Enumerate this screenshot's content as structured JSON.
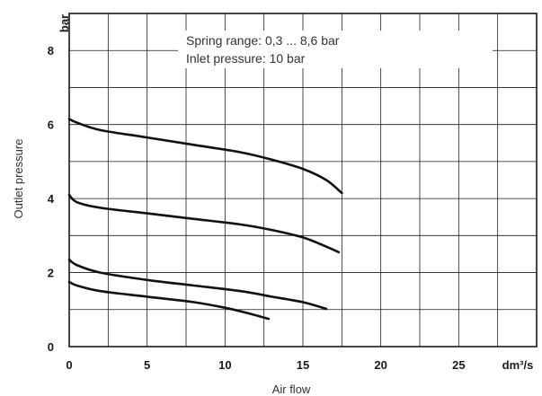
{
  "chart_data": {
    "type": "line",
    "xlabel": "Air flow",
    "ylabel": "Outlet pressure",
    "x_unit": "dm³/s",
    "y_unit": "bar",
    "xlim": [
      0,
      30
    ],
    "ylim": [
      0,
      9
    ],
    "x_ticks": [
      0,
      5,
      10,
      15,
      20,
      25
    ],
    "y_ticks": [
      0,
      2,
      4,
      6,
      8
    ],
    "x_gridlines": [
      0,
      2.5,
      5,
      7.5,
      10,
      12.5,
      15,
      17.5,
      20,
      22.5,
      25,
      27.5,
      30
    ],
    "y_gridlines": [
      0,
      1,
      2,
      3,
      4,
      5,
      6,
      7,
      8,
      9
    ],
    "grid": true,
    "annotation": [
      "Spring range: 0,3 ... 8,6 bar",
      "Inlet pressure: 10 bar"
    ],
    "series": [
      {
        "x": [
          0,
          0.5,
          2,
          5,
          8,
          11,
          13,
          15,
          16.5,
          17.5
        ],
        "y": [
          6.15,
          6.05,
          5.85,
          5.65,
          5.45,
          5.25,
          5.05,
          4.8,
          4.5,
          4.15
        ]
      },
      {
        "x": [
          0,
          0.5,
          2,
          5,
          8,
          11,
          13,
          15,
          16.5,
          17.3
        ],
        "y": [
          4.1,
          3.9,
          3.75,
          3.6,
          3.45,
          3.3,
          3.15,
          2.95,
          2.7,
          2.55
        ]
      },
      {
        "x": [
          0,
          0.5,
          2,
          5,
          8,
          11,
          13,
          15,
          16.5
        ],
        "y": [
          2.35,
          2.2,
          2.0,
          1.8,
          1.65,
          1.5,
          1.35,
          1.2,
          1.02
        ]
      },
      {
        "x": [
          0,
          0.5,
          2,
          5,
          8,
          10,
          11.5,
          12.8
        ],
        "y": [
          1.75,
          1.65,
          1.5,
          1.35,
          1.2,
          1.05,
          0.9,
          0.75
        ]
      }
    ]
  }
}
